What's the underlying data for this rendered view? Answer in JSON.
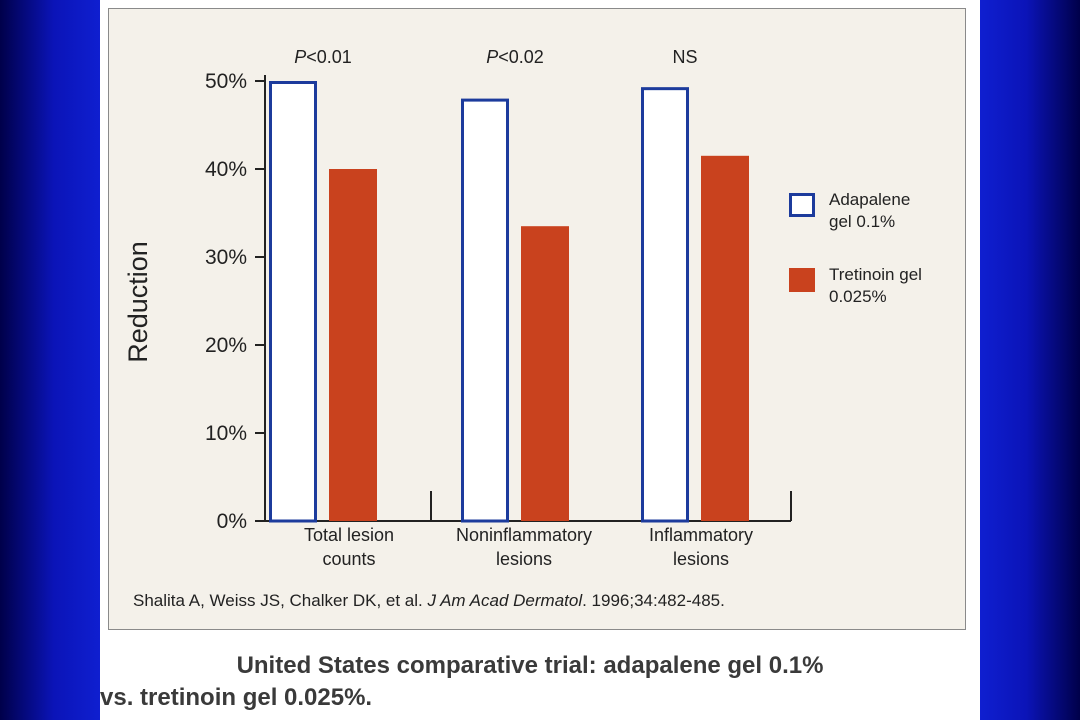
{
  "chart_data": {
    "type": "bar",
    "ylabel": "Reduction",
    "yticks": [
      "0%",
      "10%",
      "20%",
      "30%",
      "40%",
      "50%"
    ],
    "ylim": [
      0,
      50
    ],
    "categories": [
      "Total lesion counts",
      "Noninflammatory lesions",
      "Inflammatory lesions"
    ],
    "category_lines": [
      [
        "Total lesion",
        "counts"
      ],
      [
        "Noninflammatory",
        "lesions"
      ],
      [
        "Inflammatory",
        "lesions"
      ]
    ],
    "annotations": [
      {
        "prefix": "P",
        "text": "<0.01"
      },
      {
        "prefix": "P",
        "text": "<0.02"
      },
      {
        "prefix": "",
        "text": "NS"
      }
    ],
    "series": [
      {
        "name": "Adapalene gel 0.1%",
        "values": [
          50,
          48,
          49.3
        ],
        "fill": "#ffffff",
        "stroke": "#1c3b9c"
      },
      {
        "name": "Tretinoin gel 0.025%",
        "values": [
          40,
          33.5,
          41.5
        ],
        "fill": "#c9421e",
        "stroke": "#c9421e"
      }
    ],
    "legend": {
      "position": "right",
      "items": [
        {
          "line1": "Adapalene",
          "line2": "gel 0.1%"
        },
        {
          "line1": "Tretinoin gel",
          "line2": "0.025%"
        }
      ]
    },
    "grid": false
  },
  "citation": {
    "authors": "Shalita A, Weiss JS, Chalker DK, et al.",
    "journal": "J Am Acad Dermatol",
    "details": ". 1996;34:482-485."
  },
  "slide_title": {
    "line1": "United States comparative trial: adapalene gel 0.1%",
    "line2": "vs. tretinoin gel 0.025%."
  }
}
